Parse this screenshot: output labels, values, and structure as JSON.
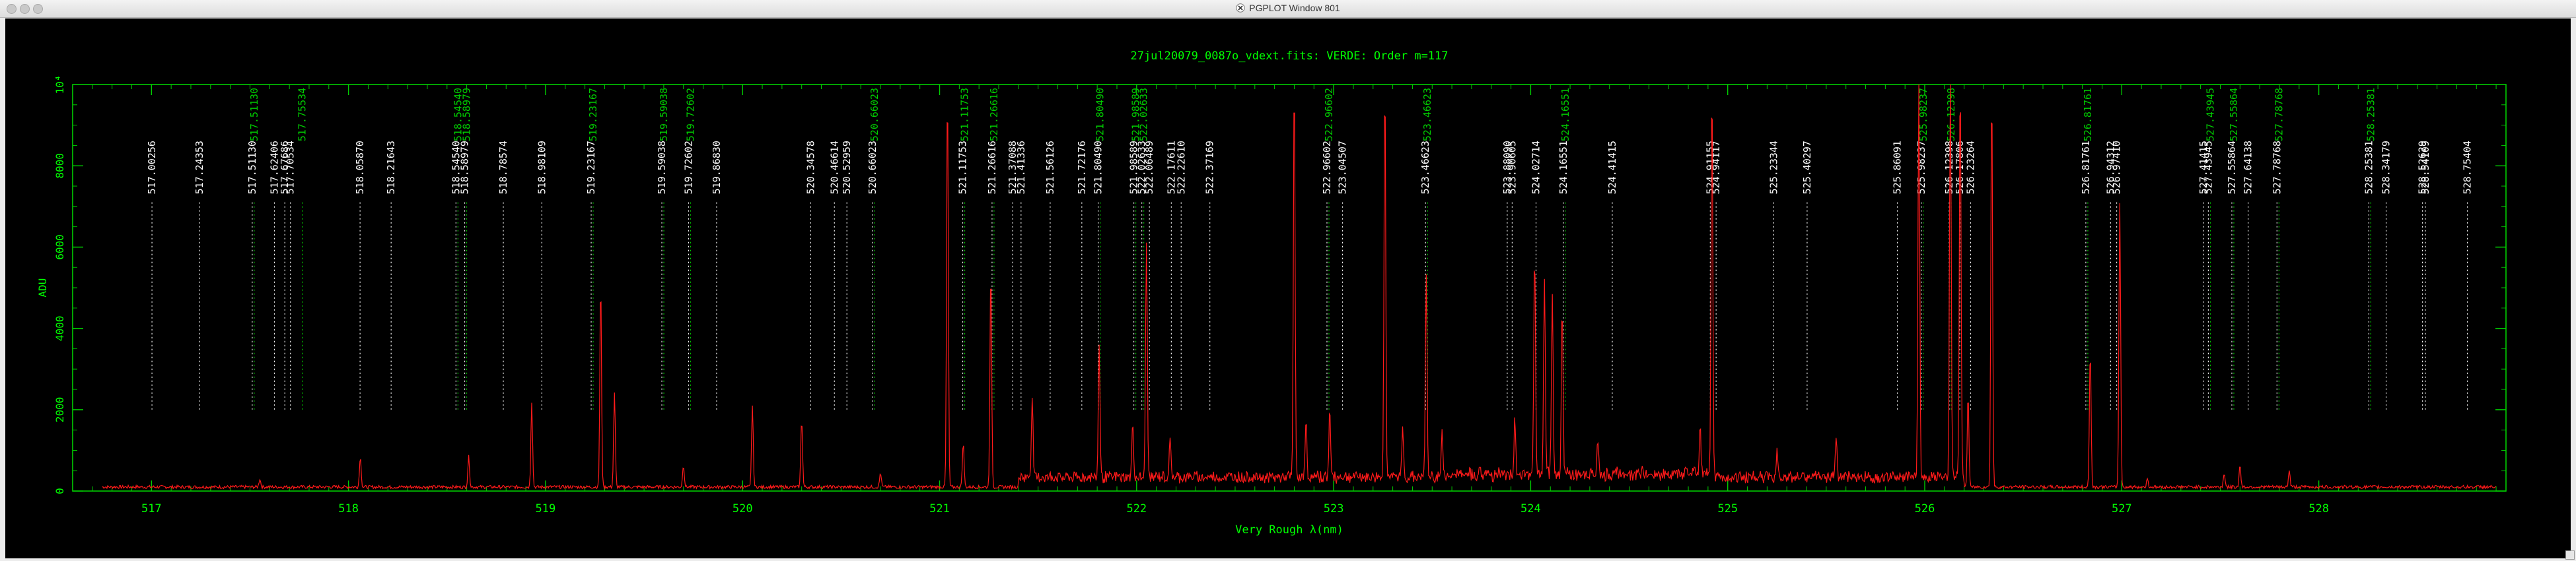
{
  "window": {
    "title": "PGPLOT Window 801"
  },
  "colors": {
    "frame": "#00cc00",
    "spectrum": "#ff1a1a",
    "tick_label": "#00ff00",
    "line_white": "#ffffff",
    "line_green": "#00cc00",
    "background": "#000000"
  },
  "chart_data": {
    "type": "line",
    "title": "27jul20079_0087o_vdext.fits: VERDE: Order m=117",
    "xlabel": "Very Rough λ(nm)",
    "ylabel": "ADU",
    "xlim": [
      516.6,
      528.95
    ],
    "ylim": [
      0,
      10000
    ],
    "x_ticks": [
      517,
      518,
      519,
      520,
      521,
      522,
      523,
      524,
      525,
      526,
      527,
      528
    ],
    "y_ticks": [
      0,
      2000,
      4000,
      6000,
      8000
    ],
    "y_tick_labels": [
      "0",
      "2000",
      "4000",
      "6000",
      "8000"
    ],
    "y_top_label": "10⁴",
    "baseline": 100,
    "peaks": [
      {
        "x": 517.55,
        "y": 200
      },
      {
        "x": 518.06,
        "y": 750
      },
      {
        "x": 518.61,
        "y": 750
      },
      {
        "x": 518.93,
        "y": 2100
      },
      {
        "x": 519.28,
        "y": 5050
      },
      {
        "x": 519.35,
        "y": 2300
      },
      {
        "x": 519.7,
        "y": 550
      },
      {
        "x": 520.05,
        "y": 2000
      },
      {
        "x": 520.3,
        "y": 1700
      },
      {
        "x": 520.7,
        "y": 350
      },
      {
        "x": 521.04,
        "y": 10000
      },
      {
        "x": 521.12,
        "y": 1100
      },
      {
        "x": 521.26,
        "y": 5400
      },
      {
        "x": 521.47,
        "y": 2000
      },
      {
        "x": 521.81,
        "y": 3300
      },
      {
        "x": 521.98,
        "y": 1300
      },
      {
        "x": 522.05,
        "y": 5900
      },
      {
        "x": 522.17,
        "y": 900
      },
      {
        "x": 522.8,
        "y": 10000
      },
      {
        "x": 522.86,
        "y": 1400
      },
      {
        "x": 522.98,
        "y": 1700
      },
      {
        "x": 523.26,
        "y": 10000
      },
      {
        "x": 523.35,
        "y": 1200
      },
      {
        "x": 523.47,
        "y": 5000
      },
      {
        "x": 523.55,
        "y": 1100
      },
      {
        "x": 523.92,
        "y": 1400
      },
      {
        "x": 524.02,
        "y": 5500
      },
      {
        "x": 524.07,
        "y": 4800
      },
      {
        "x": 524.11,
        "y": 4300
      },
      {
        "x": 524.16,
        "y": 4200
      },
      {
        "x": 524.34,
        "y": 900
      },
      {
        "x": 524.86,
        "y": 1200
      },
      {
        "x": 524.92,
        "y": 10000
      },
      {
        "x": 525.25,
        "y": 700
      },
      {
        "x": 525.55,
        "y": 1100
      },
      {
        "x": 525.97,
        "y": 10000
      },
      {
        "x": 526.13,
        "y": 10000
      },
      {
        "x": 526.18,
        "y": 10000
      },
      {
        "x": 526.22,
        "y": 2300
      },
      {
        "x": 526.34,
        "y": 10000
      },
      {
        "x": 526.84,
        "y": 3400
      },
      {
        "x": 526.99,
        "y": 7000
      },
      {
        "x": 527.13,
        "y": 200
      },
      {
        "x": 527.52,
        "y": 350
      },
      {
        "x": 527.6,
        "y": 550
      },
      {
        "x": 527.85,
        "y": 400
      }
    ],
    "line_labels_white": [
      {
        "x": 517.00256,
        "label": "517.00256"
      },
      {
        "x": 517.24353,
        "label": "517.24353"
      },
      {
        "x": 517.5113,
        "label": "517.51130"
      },
      {
        "x": 517.62406,
        "label": "517.62406"
      },
      {
        "x": 517.67686,
        "label": "517.67686"
      },
      {
        "x": 517.70534,
        "label": "517.70534"
      },
      {
        "x": 518.0587,
        "label": "518.05870"
      },
      {
        "x": 518.21643,
        "label": "518.21643"
      },
      {
        "x": 518.5454,
        "label": "518.54540"
      },
      {
        "x": 518.58979,
        "label": "518.58979"
      },
      {
        "x": 518.78574,
        "label": "518.78574"
      },
      {
        "x": 518.98109,
        "label": "518.98109"
      },
      {
        "x": 519.23167,
        "label": "519.23167"
      },
      {
        "x": 519.59038,
        "label": "519.59038"
      },
      {
        "x": 519.72602,
        "label": "519.72602"
      },
      {
        "x": 519.8683,
        "label": "519.86830"
      },
      {
        "x": 520.34578,
        "label": "520.34578"
      },
      {
        "x": 520.46614,
        "label": "520.46614"
      },
      {
        "x": 520.52959,
        "label": "520.52959"
      },
      {
        "x": 520.66023,
        "label": "520.66023"
      },
      {
        "x": 521.11753,
        "label": "521.11753"
      },
      {
        "x": 521.26616,
        "label": "521.26616"
      },
      {
        "x": 521.37088,
        "label": "521.37088"
      },
      {
        "x": 521.41336,
        "label": "521.41336"
      },
      {
        "x": 521.56126,
        "label": "521.56126"
      },
      {
        "x": 521.72176,
        "label": "521.72176"
      },
      {
        "x": 521.8049,
        "label": "521.80490"
      },
      {
        "x": 521.98589,
        "label": "521.98589"
      },
      {
        "x": 522.02633,
        "label": "522.02633"
      },
      {
        "x": 522.06489,
        "label": "522.06489"
      },
      {
        "x": 522.17611,
        "label": "522.17611"
      },
      {
        "x": 522.2261,
        "label": "522.22610"
      },
      {
        "x": 522.37169,
        "label": "522.37169"
      },
      {
        "x": 522.96602,
        "label": "522.96602"
      },
      {
        "x": 523.04507,
        "label": "523.04507"
      },
      {
        "x": 523.46623,
        "label": "523.46623"
      },
      {
        "x": 523.8809,
        "label": "523.88090"
      },
      {
        "x": 523.90605,
        "label": "523.90605"
      },
      {
        "x": 524.02714,
        "label": "524.02714"
      },
      {
        "x": 524.16551,
        "label": "524.16551"
      },
      {
        "x": 524.41415,
        "label": "524.41415"
      },
      {
        "x": 524.91155,
        "label": "524.91155"
      },
      {
        "x": 524.94117,
        "label": "524.94117"
      },
      {
        "x": 525.23344,
        "label": "525.23344"
      },
      {
        "x": 525.40297,
        "label": "525.40297"
      },
      {
        "x": 525.86091,
        "label": "525.86091"
      },
      {
        "x": 525.98237,
        "label": "525.98237"
      },
      {
        "x": 526.12398,
        "label": "526.12398"
      },
      {
        "x": 526.17806,
        "label": "526.17806"
      },
      {
        "x": 526.23264,
        "label": "526.23264"
      },
      {
        "x": 526.81761,
        "label": "526.81761"
      },
      {
        "x": 526.94312,
        "label": "526.94312"
      },
      {
        "x": 526.9741,
        "label": "526.97410"
      },
      {
        "x": 527.41415,
        "label": "527.41415"
      },
      {
        "x": 527.43945,
        "label": "527.43945"
      },
      {
        "x": 527.55864,
        "label": "527.55864"
      },
      {
        "x": 527.64138,
        "label": "527.64138"
      },
      {
        "x": 527.78768,
        "label": "527.78768"
      },
      {
        "x": 528.25381,
        "label": "528.25381"
      },
      {
        "x": 528.34179,
        "label": "528.34179"
      },
      {
        "x": 528.52629,
        "label": "528.52629"
      },
      {
        "x": 528.54109,
        "label": "528.54109"
      },
      {
        "x": 528.75404,
        "label": "528.75404"
      }
    ],
    "line_labels_green": [
      {
        "x": 517.5113,
        "label": "517.51130"
      },
      {
        "x": 517.75534,
        "label": "517.75534"
      },
      {
        "x": 518.5454,
        "label": "518.54540"
      },
      {
        "x": 518.58979,
        "label": "518.58979"
      },
      {
        "x": 519.23167,
        "label": "519.23167"
      },
      {
        "x": 519.59038,
        "label": "519.59038"
      },
      {
        "x": 519.72602,
        "label": "519.72602"
      },
      {
        "x": 520.66023,
        "label": "520.66023"
      },
      {
        "x": 521.11753,
        "label": "521.11753"
      },
      {
        "x": 521.26616,
        "label": "521.26616"
      },
      {
        "x": 521.8049,
        "label": "521.80490"
      },
      {
        "x": 521.98589,
        "label": "521.98589"
      },
      {
        "x": 522.02633,
        "label": "522.02633"
      },
      {
        "x": 522.96602,
        "label": "522.96602"
      },
      {
        "x": 523.46623,
        "label": "523.46623"
      },
      {
        "x": 524.16551,
        "label": "524.16551"
      },
      {
        "x": 525.98237,
        "label": "525.98237"
      },
      {
        "x": 526.12398,
        "label": "526.12398"
      },
      {
        "x": 526.81761,
        "label": "526.81761"
      },
      {
        "x": 527.43945,
        "label": "527.43945"
      },
      {
        "x": 527.55864,
        "label": "527.55864"
      },
      {
        "x": 527.78768,
        "label": "527.78768"
      },
      {
        "x": 528.25381,
        "label": "528.25381"
      }
    ]
  }
}
